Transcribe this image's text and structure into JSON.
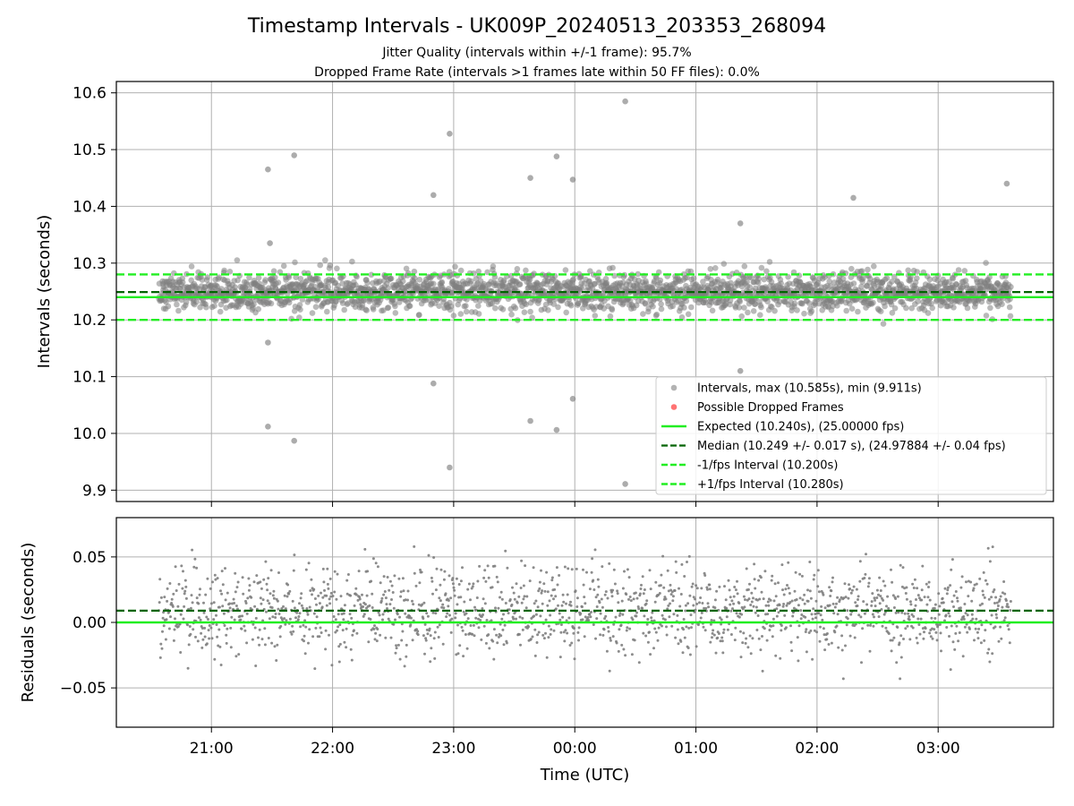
{
  "chart_data": {
    "type": "scatter",
    "title": "Timestamp Intervals - UK009P_20240513_203353_268094",
    "subtitle_lines": [
      "Jitter Quality (intervals within +/-1 frame): 95.7%",
      "Dropped Frame Rate (intervals >1 frames late within 50 FF files): 0.0%"
    ],
    "x_axis": {
      "label": "Time (UTC)",
      "time_range": [
        "20:34",
        "03:36"
      ],
      "ticks": [
        "21:00",
        "22:00",
        "23:00",
        "00:00",
        "01:00",
        "02:00",
        "03:00"
      ]
    },
    "top_panel": {
      "ylabel": "Intervals (seconds)",
      "ylim": [
        9.88,
        10.62
      ],
      "yticks": [
        "9.9",
        "10.0",
        "10.1",
        "10.2",
        "10.3",
        "10.4",
        "10.5",
        "10.6"
      ],
      "grid": true,
      "expected": 10.24,
      "median": 10.249,
      "lower_interval": 10.2,
      "upper_interval": 10.28,
      "point_count": 2400,
      "band_mean": 10.249,
      "band_spread": 0.017,
      "outliers": [
        {
          "time": "21:28",
          "value": 10.465
        },
        {
          "time": "21:29",
          "value": 10.335
        },
        {
          "time": "21:28",
          "value": 10.16
        },
        {
          "time": "21:28",
          "value": 10.012
        },
        {
          "time": "21:41",
          "value": 10.49
        },
        {
          "time": "21:41",
          "value": 9.987
        },
        {
          "time": "22:50",
          "value": 10.42
        },
        {
          "time": "22:50",
          "value": 10.088
        },
        {
          "time": "22:58",
          "value": 10.528
        },
        {
          "time": "22:58",
          "value": 9.94
        },
        {
          "time": "23:38",
          "value": 10.45
        },
        {
          "time": "23:38",
          "value": 10.022
        },
        {
          "time": "23:51",
          "value": 10.488
        },
        {
          "time": "23:51",
          "value": 10.006
        },
        {
          "time": "23:59",
          "value": 10.447
        },
        {
          "time": "23:59",
          "value": 10.061
        },
        {
          "time": "00:25",
          "value": 10.585
        },
        {
          "time": "00:25",
          "value": 9.911
        },
        {
          "time": "01:22",
          "value": 10.37
        },
        {
          "time": "01:22",
          "value": 10.11
        },
        {
          "time": "02:18",
          "value": 10.415
        },
        {
          "time": "03:34",
          "value": 10.44
        }
      ],
      "legend": {
        "placement": "lower-right",
        "entries": [
          "Intervals, max (10.585s), min (9.911s)",
          "Possible Dropped Frames",
          "Expected (10.240s), (25.00000 fps)",
          "Median (10.249 +/- 0.017 s), (24.97884 +/- 0.04 fps)",
          "-1/fps Interval (10.200s)",
          "+1/fps Interval (10.280s)"
        ]
      }
    },
    "bottom_panel": {
      "ylabel": "Residuals (seconds)",
      "ylim": [
        -0.08,
        0.08
      ],
      "yticks": [
        "−0.05",
        "0.00",
        "0.05"
      ],
      "grid": true,
      "zero_line": 0.0,
      "median_line": 0.009,
      "point_count": 1700,
      "residual_mean": 0.009,
      "residual_spread": 0.017
    },
    "colors": {
      "points": "#808080",
      "dropped": "#ff4444",
      "expected": "#22ee22",
      "median": "#006400",
      "interval": "#22ee22",
      "grid": "#b0b0b0"
    }
  }
}
